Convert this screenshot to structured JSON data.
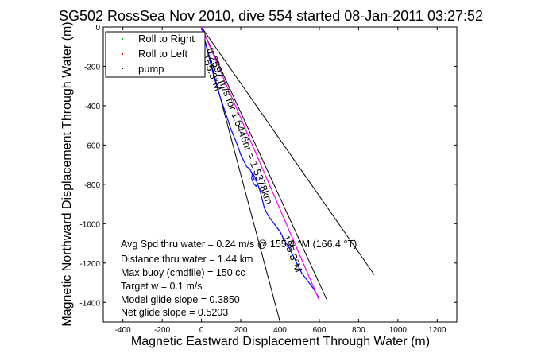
{
  "chart_data": {
    "type": "line",
    "title": "SG502 RossSea Nov 2010, dive 554 started 08-Jan-2011 03:27:52",
    "xlabel": "Magnetic Eastward Displacement Through Water (m)",
    "ylabel": "Magnetic Northward Displacement Through Water (m)",
    "xlim": [
      -500,
      1300
    ],
    "ylim": [
      -1500,
      0
    ],
    "xticks": [
      -400,
      -200,
      0,
      200,
      400,
      600,
      800,
      1000,
      1200
    ],
    "yticks": [
      0,
      -200,
      -400,
      -600,
      -800,
      -1000,
      -1200,
      -1400
    ],
    "grid": false,
    "legend_position": "top-left",
    "legend": [
      {
        "label": "Roll to Right",
        "color": "#00c000"
      },
      {
        "label": "Roll to Left",
        "color": "#ff0000"
      },
      {
        "label": "pump",
        "color": "#000000"
      }
    ],
    "series": [
      {
        "name": "track",
        "color": "#0000ff",
        "x": [
          0,
          30,
          60,
          90,
          120,
          150,
          175,
          190,
          200,
          215,
          230,
          245,
          255,
          262,
          268,
          275,
          282,
          284,
          278,
          265,
          255,
          260,
          280,
          300,
          310,
          320,
          340,
          370,
          400,
          420,
          450,
          470,
          490,
          510,
          540,
          570,
          600
        ],
        "y": [
          0,
          -120,
          -240,
          -340,
          -430,
          -520,
          -580,
          -620,
          -650,
          -680,
          -710,
          -720,
          -740,
          -760,
          -775,
          -780,
          -785,
          -800,
          -810,
          -795,
          -770,
          -740,
          -780,
          -840,
          -880,
          -920,
          -960,
          -1000,
          -1040,
          -1080,
          -1130,
          -1170,
          -1210,
          -1250,
          -1290,
          -1330,
          -1380
        ]
      },
      {
        "name": "heading",
        "color": "#ff00ff",
        "x": [
          0,
          600
        ],
        "y": [
          0,
          -1390
        ]
      }
    ],
    "reference_lines": [
      {
        "x": [
          0,
          880
        ],
        "y": [
          0,
          -1260
        ],
        "color": "#000000"
      },
      {
        "x": [
          0,
          400
        ],
        "y": [
          0,
          -1500
        ],
        "color": "#000000"
      },
      {
        "x": [
          0,
          640
        ],
        "y": [
          0,
          -1390
        ],
        "color": "#000000"
      }
    ],
    "annotations": {
      "upper_line": "0.2597 m/s for 1.6446hr = 1.5378km",
      "angle_a": "155.3°M",
      "angle_b": "155.3°M"
    },
    "stats": [
      "Avg Spd thru water = 0.24 m/s @ 155.4 °M (166.4 °T)",
      "Distance thru water = 1.44 km",
      "Max buoy (cmdfile) = 150 cc",
      "Target w = 0.1 m/s",
      "Model glide slope = 0.3850",
      "Net glide slope = 0.5203"
    ]
  }
}
